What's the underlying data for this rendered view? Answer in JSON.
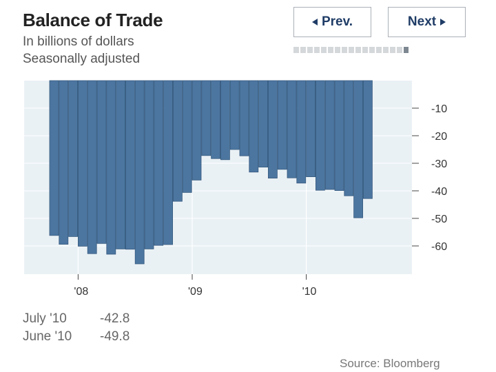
{
  "header": {
    "title": "Balance of Trade",
    "subtitle_line1": "In billions of dollars",
    "subtitle_line2": "Seasonally adjusted"
  },
  "nav": {
    "prev_label": "Prev.",
    "next_label": "Next",
    "page_count": 17,
    "active_page": 17
  },
  "colors": {
    "bar": "#4c76a0",
    "bar_edge": "#365a7e",
    "plot_bg": "#eaf1f5",
    "grid": "#ffffff"
  },
  "chart_data": {
    "type": "bar",
    "title": "Balance of Trade",
    "ylabel": "In billions of dollars, seasonally adjusted",
    "ylim": [
      -70,
      0
    ],
    "yticks": [
      -10,
      -20,
      -30,
      -40,
      -50,
      -60
    ],
    "ytick_labels": [
      "-10",
      "-20",
      "-30",
      "-40",
      "-50",
      "-60"
    ],
    "x_tick_labels": [
      "'08",
      "'09",
      "'10"
    ],
    "x_tick_months": [
      "Jan 2008",
      "Jan 2009",
      "Jan 2010"
    ],
    "categories": [
      "Oct 07",
      "Nov 07",
      "Dec 07",
      "Jan 08",
      "Feb 08",
      "Mar 08",
      "Apr 08",
      "May 08",
      "Jun 08",
      "Jul 08",
      "Aug 08",
      "Sep 08",
      "Oct 08",
      "Nov 08",
      "Dec 08",
      "Jan 09",
      "Feb 09",
      "Mar 09",
      "Apr 09",
      "May 09",
      "Jun 09",
      "Jul 09",
      "Aug 09",
      "Sep 09",
      "Oct 09",
      "Nov 09",
      "Dec 09",
      "Jan 10",
      "Feb 10",
      "Mar 10",
      "Apr 10",
      "May 10",
      "Jun 10",
      "Jul 10"
    ],
    "values": [
      -56.2,
      -59.4,
      -56.6,
      -60.1,
      -62.8,
      -59.1,
      -63.0,
      -61.1,
      -61.2,
      -66.5,
      -61.1,
      -59.8,
      -59.5,
      -43.8,
      -40.6,
      -36.1,
      -27.2,
      -28.3,
      -28.7,
      -25.0,
      -27.3,
      -33.2,
      -31.4,
      -35.4,
      -32.2,
      -35.3,
      -37.2,
      -34.9,
      -39.8,
      -39.5,
      -39.9,
      -41.8,
      -49.8,
      -42.8
    ]
  },
  "stats": [
    {
      "label": "July '10",
      "value": "-42.8"
    },
    {
      "label": "June '10",
      "value": "-49.8"
    }
  ],
  "source": "Source: Bloomberg"
}
